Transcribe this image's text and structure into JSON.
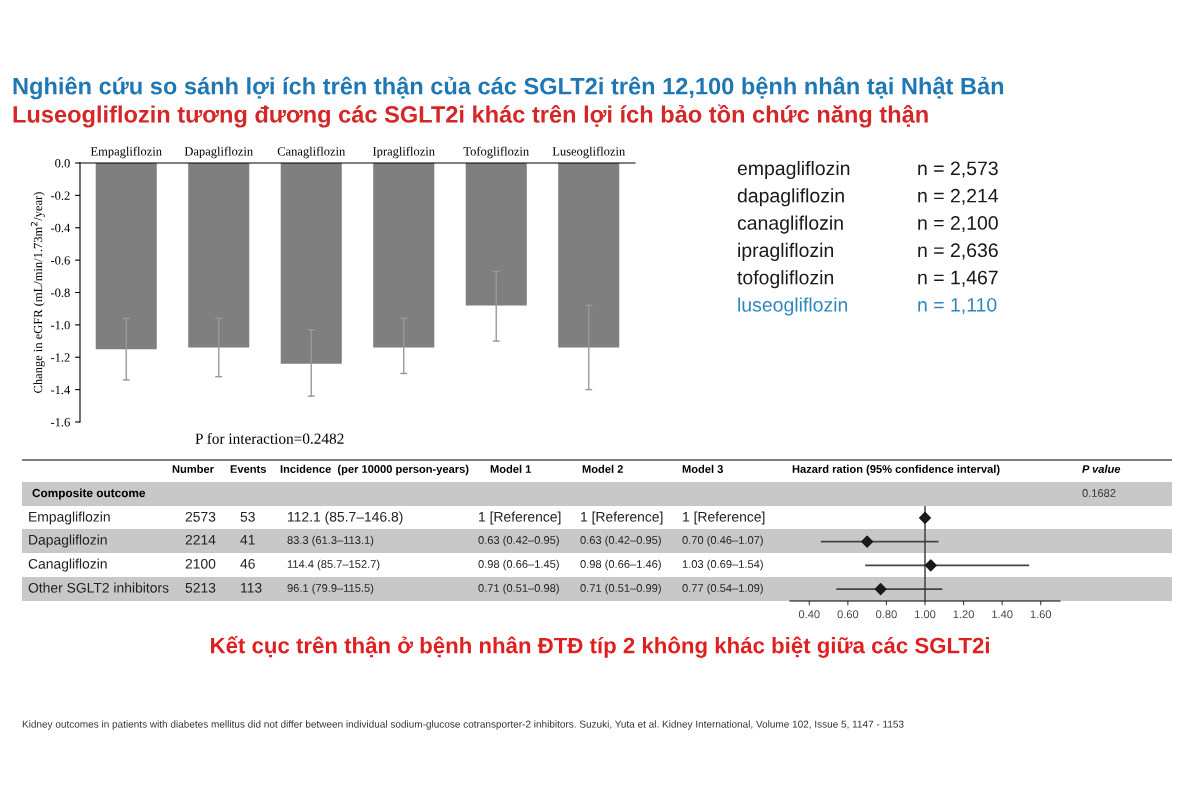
{
  "chart_data": [
    {
      "type": "bar",
      "title": "Nghiên cứu so sánh lợi ích trên thận của các SGLT2i trên 12,100 bệnh nhân tại Nhật Bản",
      "subtitle": "Luseogliflozin tương đương các SGLT2i khác trên lợi ích bảo tồn chức năng thận",
      "categories": [
        "Empagliflozin",
        "Dapagliflozin",
        "Canagliflozin",
        "Ipragliflozin",
        "Tofogliflozin",
        "Luseogliflozin"
      ],
      "values": [
        -1.15,
        -1.14,
        -1.24,
        -1.14,
        -0.88,
        -1.14
      ],
      "errors": [
        [
          -1.34,
          -0.96
        ],
        [
          -1.32,
          -0.96
        ],
        [
          -1.44,
          -1.03
        ],
        [
          -1.3,
          -0.96
        ],
        [
          -1.1,
          -0.67
        ],
        [
          -1.4,
          -0.88
        ]
      ],
      "color": "#7f7f7f",
      "ylim": [
        -1.6,
        0
      ],
      "yticks": [
        {
          "value": -1.6,
          "label": "-1.6"
        },
        {
          "value": -1.4,
          "label": "-1.4"
        },
        {
          "value": -1.2,
          "label": "-1.2"
        },
        {
          "value": -1.0,
          "label": "-1.0"
        },
        {
          "value": -0.8,
          "label": "-0.8"
        },
        {
          "value": -0.6,
          "label": "-0.6"
        },
        {
          "value": -0.4,
          "label": "-0.4"
        },
        {
          "value": -0.2,
          "label": "-0.2"
        },
        {
          "value": 0,
          "label": "0.0"
        }
      ],
      "ylabel": "Change in eGFR (mL/min/1.73m$^{2}$/year)",
      "annotations": [
        "P for interaction=0.2482"
      ],
      "grid": false,
      "legend": false
    },
    {
      "type": "other",
      "annotations": [
        "empagliflozin",
        "n = 2,573",
        "dapagliflozin",
        "n = 2,214",
        "canagliflozin",
        "n = 2,100",
        "ipragliflozin",
        "n = 2,636",
        "tofogliflozin",
        "n = 1,467",
        "luseogliflozin",
        "n = 1,110"
      ],
      "colors": [
        "#1a1a1a",
        "#1a1a1a",
        "#1a1a1a",
        "#1a1a1a",
        "#1a1a1a",
        "#1a1a1a",
        "#1a1a1a",
        "#1a1a1a",
        "#1a1a1a",
        "#1a1a1a",
        "#2e86c1",
        "#2e86c1"
      ]
    },
    {
      "type": "other",
      "annotations": [
        "Number",
        "Events",
        "Incidence  (per 10000 person-years)",
        "Model 1",
        "Model 2",
        "Model 3",
        "Hazard ration (95% confidence interval)",
        "P value",
        "Composite outcome",
        "0.1682",
        "Empagliflozin",
        "2573",
        "53",
        "112.1 (85.7–146.8)",
        "1 [Reference]",
        "1 [Reference]",
        "1 [Reference]",
        "Dapagliflozin",
        "2214",
        "41",
        "83.3 (61.3–113.1)",
        "0.63 (0.42–0.95)",
        "0.63 (0.42–0.95)",
        "0.70 (0.46–1.07)",
        "Canagliflozin",
        "2100",
        "46",
        "114.4 (85.7–152.7)",
        "0.98 (0.66–1.45)",
        "0.98 (0.66–1.46)",
        "1.03 (0.69–1.54)",
        "Other SGLT2 inhibitors",
        "5213",
        "113",
        "96.1 (79.9–115.5)",
        "0.71 (0.51–0.98)",
        "0.71 (0.51–0.99)",
        "0.77 (0.54–1.09)"
      ]
    },
    {
      "type": "scatter",
      "orientation": "horizontal",
      "categories": [
        null,
        null,
        null,
        null
      ],
      "values": [
        1.0,
        0.7,
        1.03,
        0.77
      ],
      "errors": [
        null,
        [
          0.46,
          1.07
        ],
        [
          0.69,
          1.54
        ],
        [
          0.54,
          1.09
        ]
      ],
      "color": "#1a1a1a",
      "marker": "diamond",
      "xlim": [
        0.3,
        1.7
      ],
      "xticks": [
        {
          "value": 0.4,
          "label": "0.40"
        },
        {
          "value": 0.6,
          "label": "0.60"
        },
        {
          "value": 0.8,
          "label": "0.80"
        },
        {
          "value": 1.0,
          "label": "1.00"
        },
        {
          "value": 1.2,
          "label": "1.20"
        },
        {
          "value": 1.4,
          "label": "1.40"
        },
        {
          "value": 1.6,
          "label": "1.60"
        }
      ],
      "ref_lines": [
        {
          "axis": "x",
          "value": 1.0,
          "color": "#333333"
        }
      ],
      "annotations": [
        "Kết cục trên thận ở bệnh nhân ĐTĐ típ 2 không khác biệt giữa các SGLT2i",
        "Kidney outcomes in patients with diabetes mellitus did not differ between individual sodium-glucose cotransporter-2 inhibitors. Suzuki, Yuta et al. Kidney International, Volume 102, Issue 5, 1147 - 1153"
      ]
    }
  ]
}
